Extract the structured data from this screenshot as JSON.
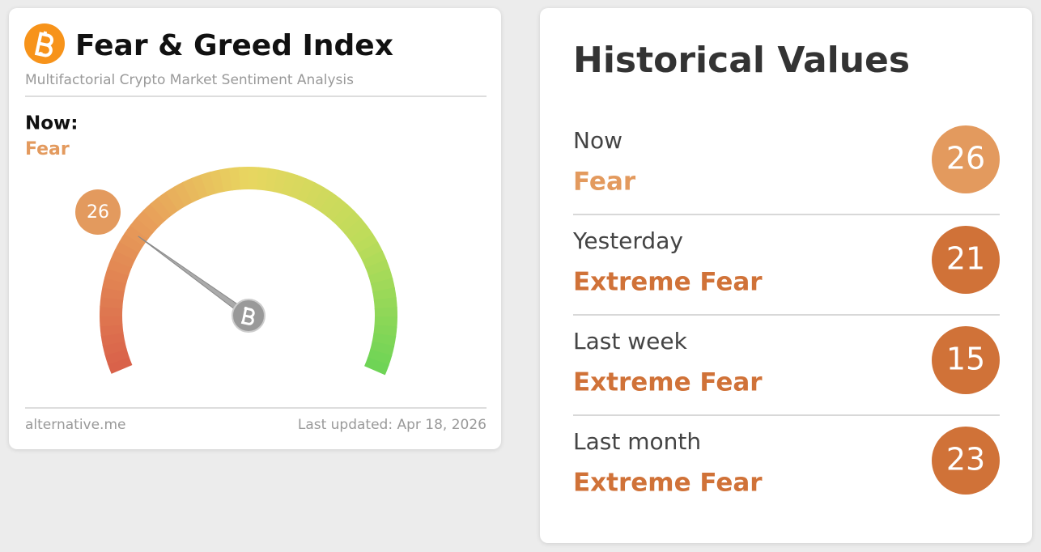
{
  "widget": {
    "title": "Fear & Greed Index",
    "subtitle": "Multifactorial Crypto Market Sentiment Analysis",
    "now_label": "Now:",
    "classification": "Fear",
    "color": "#e39a5e",
    "gauge": {
      "value": 26,
      "lim": [
        0,
        100
      ]
    },
    "source": "alternative.me",
    "updated": "Last updated: Apr 18, 2026"
  },
  "history": {
    "title": "Historical Values",
    "rows": [
      {
        "label": "Now",
        "classification": "Fear",
        "value": 26,
        "color": "#e39a5e"
      },
      {
        "label": "Yesterday",
        "classification": "Extreme Fear",
        "value": 21,
        "color": "#d07238"
      },
      {
        "label": "Last week",
        "classification": "Extreme Fear",
        "value": 15,
        "color": "#d07238"
      },
      {
        "label": "Last month",
        "classification": "Extreme Fear",
        "value": 23,
        "color": "#d07238"
      }
    ]
  }
}
